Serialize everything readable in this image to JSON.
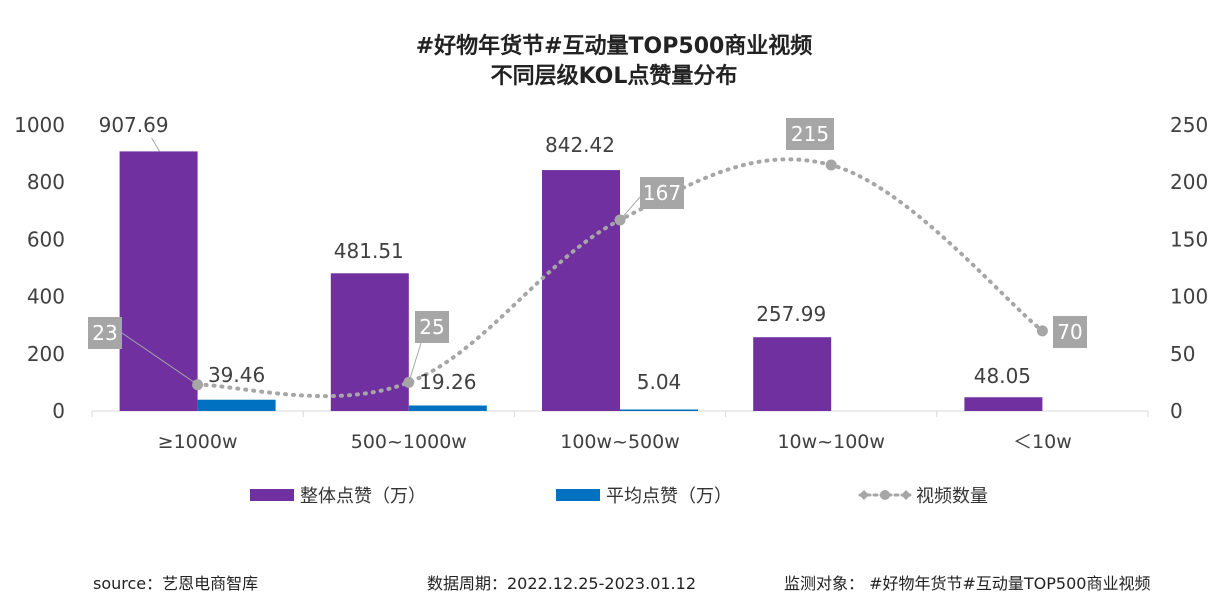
{
  "title_line1": "#好物年货节#互动量TOP500商业视频",
  "title_line2": "不同层级KOL点赞量分布",
  "colors": {
    "total": "#7030A0",
    "avg": "#0070C0",
    "count": "#A6A6A6",
    "label_box": "#A6A6A6"
  },
  "chart_data": {
    "type": "bar",
    "categories": [
      "≥1000w",
      "500~1000w",
      "100w~500w",
      "10w~100w",
      "＜10w"
    ],
    "series": [
      {
        "name": "整体点赞（万）",
        "type": "bar",
        "axis": "left",
        "values": [
          907.69,
          481.51,
          842.42,
          257.99,
          48.05
        ],
        "labels": [
          "907.69",
          "481.51",
          "842.42",
          "257.99",
          "48.05"
        ]
      },
      {
        "name": "平均点赞（万）",
        "type": "bar",
        "axis": "left",
        "values": [
          39.46,
          19.26,
          5.04,
          null,
          null
        ],
        "labels": [
          "39.46",
          "19.26",
          "5.04",
          "",
          ""
        ]
      },
      {
        "name": "视频数量",
        "type": "line",
        "axis": "right",
        "values": [
          23,
          25,
          167,
          215,
          70
        ],
        "labels": [
          "23",
          "25",
          "167",
          "215",
          "70"
        ]
      }
    ],
    "y_left": {
      "ylim": [
        0,
        1000
      ],
      "ticks": [
        "0",
        "200",
        "400",
        "600",
        "800",
        "1000"
      ]
    },
    "y_right": {
      "ylim": [
        0,
        250
      ],
      "ticks": [
        "0",
        "50",
        "100",
        "150",
        "200",
        "250"
      ]
    },
    "legend": "bottom"
  },
  "footer": {
    "source": "source：艺恩电商智库",
    "period": "数据周期：2022.12.25-2023.01.12",
    "target": "监测对象：  #好物年货节#互动量TOP500商业视频"
  }
}
